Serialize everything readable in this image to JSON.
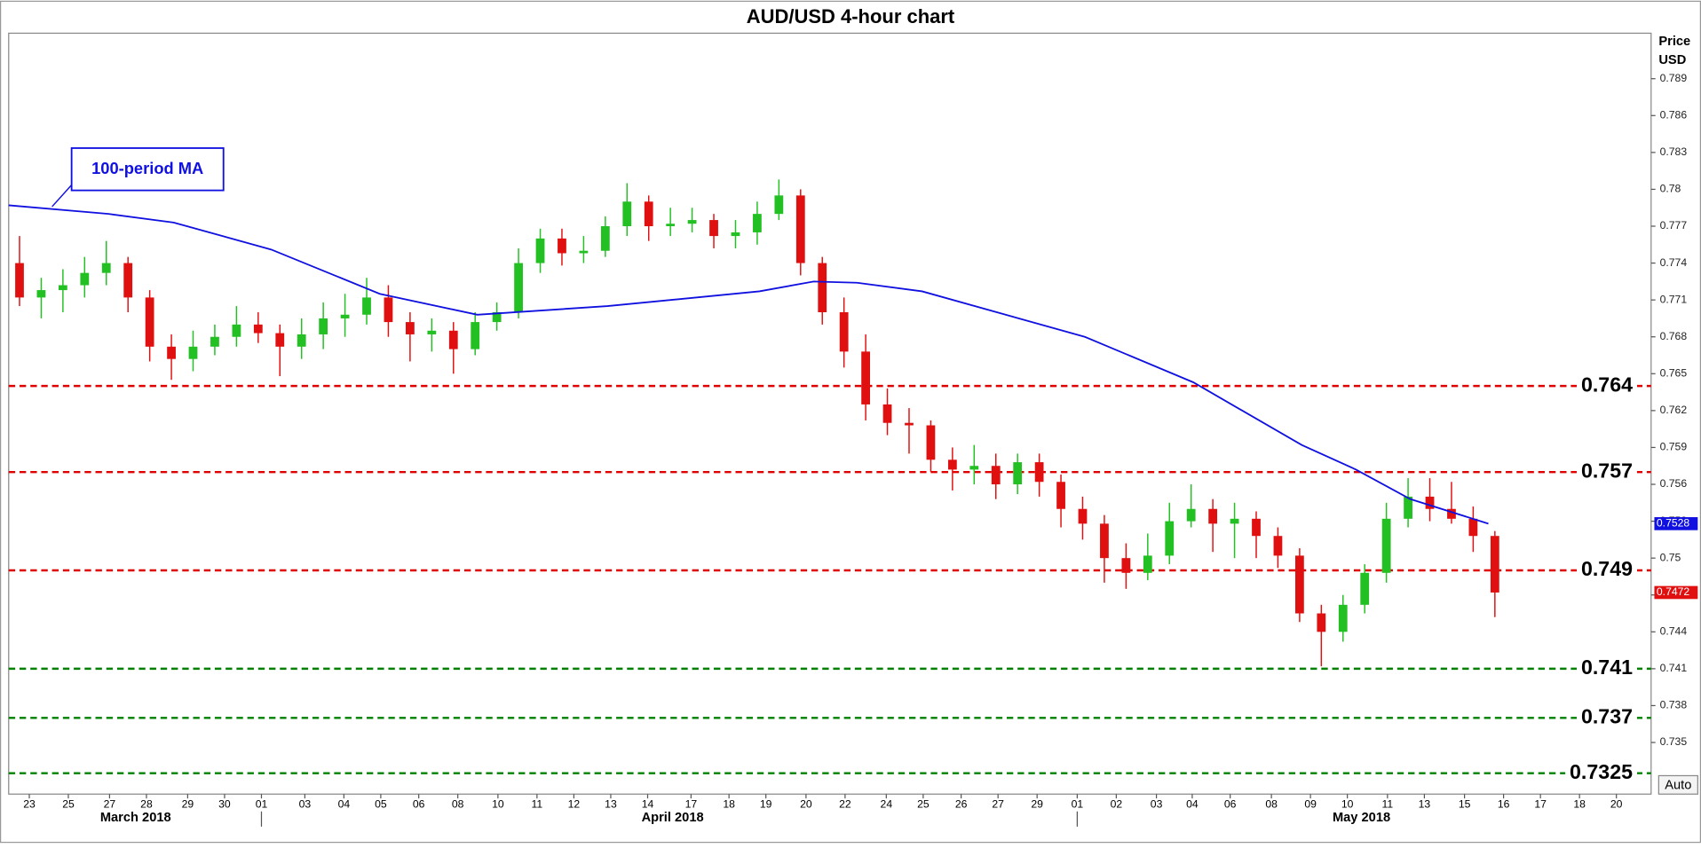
{
  "chart_data": {
    "type": "candlestick",
    "title": "AUD/USD 4-hour chart",
    "y_axis_label": [
      "Price",
      "USD"
    ],
    "up_color": "#22c022",
    "down_color": "#e01010",
    "open": [
      0.774,
      0.7712,
      0.7718,
      0.7722,
      0.7732,
      0.774,
      0.7712,
      0.7672,
      0.7662,
      0.7672,
      0.768,
      0.769,
      0.7683,
      0.7672,
      0.7682,
      0.7695,
      0.7698,
      0.7712,
      0.7692,
      0.7682,
      0.7685,
      0.767,
      0.7692,
      0.77,
      0.774,
      0.776,
      0.7748,
      0.775,
      0.777,
      0.779,
      0.777,
      0.7772,
      0.7775,
      0.7762,
      0.7765,
      0.778,
      0.7795,
      0.774,
      0.77,
      0.7668,
      0.7625,
      0.761,
      0.7608,
      0.758,
      0.7572,
      0.7575,
      0.756,
      0.7578,
      0.7562,
      0.754,
      0.7528,
      0.75,
      0.7488,
      0.7502,
      0.753,
      0.754,
      0.7528,
      0.7532,
      0.7518,
      0.7502,
      0.7455,
      0.744,
      0.7462,
      0.7488,
      0.7532,
      0.755,
      0.754,
      0.7532,
      0.7518
    ],
    "high": [
      0.7762,
      0.7728,
      0.7735,
      0.7745,
      0.7758,
      0.7745,
      0.7718,
      0.7682,
      0.7685,
      0.769,
      0.7705,
      0.77,
      0.769,
      0.7695,
      0.7708,
      0.7715,
      0.7728,
      0.7722,
      0.77,
      0.7695,
      0.7692,
      0.77,
      0.7708,
      0.7752,
      0.7768,
      0.7768,
      0.7762,
      0.7778,
      0.7805,
      0.7795,
      0.7785,
      0.7785,
      0.778,
      0.7775,
      0.779,
      0.7808,
      0.78,
      0.7745,
      0.7712,
      0.7682,
      0.7638,
      0.7622,
      0.7612,
      0.759,
      0.7592,
      0.7585,
      0.7585,
      0.7585,
      0.7568,
      0.755,
      0.7535,
      0.7512,
      0.752,
      0.7545,
      0.756,
      0.7548,
      0.7545,
      0.7538,
      0.7525,
      0.7508,
      0.7462,
      0.747,
      0.7495,
      0.7545,
      0.7565,
      0.7565,
      0.7562,
      0.7542,
      0.7522
    ],
    "low": [
      0.7705,
      0.7695,
      0.77,
      0.7712,
      0.7722,
      0.77,
      0.766,
      0.7645,
      0.7652,
      0.7665,
      0.7672,
      0.7675,
      0.7648,
      0.7662,
      0.767,
      0.768,
      0.769,
      0.768,
      0.766,
      0.7668,
      0.765,
      0.7665,
      0.7685,
      0.7695,
      0.7732,
      0.7738,
      0.774,
      0.7745,
      0.7762,
      0.7758,
      0.7762,
      0.7765,
      0.7752,
      0.7752,
      0.7755,
      0.7775,
      0.773,
      0.769,
      0.7655,
      0.7612,
      0.76,
      0.7585,
      0.757,
      0.7555,
      0.756,
      0.7548,
      0.7552,
      0.755,
      0.7525,
      0.7515,
      0.748,
      0.7475,
      0.7482,
      0.7495,
      0.7525,
      0.7505,
      0.75,
      0.75,
      0.7492,
      0.7448,
      0.7412,
      0.7432,
      0.7455,
      0.748,
      0.7525,
      0.753,
      0.7528,
      0.7505,
      0.7452
    ],
    "close": [
      0.7712,
      0.7718,
      0.7722,
      0.7732,
      0.774,
      0.7712,
      0.7672,
      0.7662,
      0.7672,
      0.768,
      0.769,
      0.7683,
      0.7672,
      0.7682,
      0.7695,
      0.7698,
      0.7712,
      0.7692,
      0.7682,
      0.7685,
      0.767,
      0.7692,
      0.77,
      0.774,
      0.776,
      0.7748,
      0.775,
      0.777,
      0.779,
      0.777,
      0.7772,
      0.7775,
      0.7762,
      0.7765,
      0.778,
      0.7795,
      0.774,
      0.77,
      0.7668,
      0.7625,
      0.761,
      0.7608,
      0.758,
      0.7572,
      0.7575,
      0.756,
      0.7578,
      0.7562,
      0.754,
      0.7528,
      0.75,
      0.7488,
      0.7502,
      0.753,
      0.754,
      0.7528,
      0.7532,
      0.7518,
      0.7502,
      0.7455,
      0.744,
      0.7462,
      0.7488,
      0.7532,
      0.755,
      0.754,
      0.7532,
      0.7518,
      0.7472
    ],
    "ma": {
      "name": "100-period MA",
      "color": "#1010e0",
      "x": [
        0,
        4.6,
        7.6,
        12.1,
        17.1,
        21.6,
        27.6,
        34.6,
        37.1,
        39.1,
        42.1,
        49.6,
        54.6,
        59.6,
        62.1,
        64.6,
        68.2
      ],
      "values": [
        0.7787,
        0.778,
        0.7773,
        0.7751,
        0.7715,
        0.7698,
        0.7705,
        0.7717,
        0.7725,
        0.7724,
        0.7717,
        0.768,
        0.7643,
        0.7592,
        0.7572,
        0.7548,
        0.7528
      ]
    },
    "levels": [
      {
        "value": 0.764,
        "color": "#e00000"
      },
      {
        "value": 0.757,
        "color": "#e00000"
      },
      {
        "value": 0.749,
        "color": "#e00000"
      },
      {
        "value": 0.741,
        "color": "#008000"
      },
      {
        "value": 0.737,
        "color": "#008000"
      },
      {
        "value": 0.7325,
        "color": "#008000"
      }
    ],
    "ylim": [
      0.7308,
      0.7927
    ],
    "yticks": [
      0.789,
      0.786,
      0.783,
      0.78,
      0.777,
      0.774,
      0.771,
      0.768,
      0.765,
      0.762,
      0.759,
      0.756,
      0.753,
      0.75,
      0.747,
      0.744,
      0.741,
      0.738,
      0.735
    ],
    "xlim": [
      0,
      75.7
    ],
    "xticks": [
      {
        "value": 0.95,
        "label": "23"
      },
      {
        "value": 2.75,
        "label": "25"
      },
      {
        "value": 4.65,
        "label": "27"
      },
      {
        "value": 6.35,
        "label": "28"
      },
      {
        "value": 8.25,
        "label": "29"
      },
      {
        "value": 9.95,
        "label": "30"
      },
      {
        "value": 11.65,
        "label": "01"
      },
      {
        "value": 13.65,
        "label": "03"
      },
      {
        "value": 15.45,
        "label": "04"
      },
      {
        "value": 17.15,
        "label": "05"
      },
      {
        "value": 18.9,
        "label": "06"
      },
      {
        "value": 20.7,
        "label": "08"
      },
      {
        "value": 22.55,
        "label": "10"
      },
      {
        "value": 24.35,
        "label": "11"
      },
      {
        "value": 26.05,
        "label": "12"
      },
      {
        "value": 27.75,
        "label": "13"
      },
      {
        "value": 29.45,
        "label": "14"
      },
      {
        "value": 31.45,
        "label": "17"
      },
      {
        "value": 33.2,
        "label": "18"
      },
      {
        "value": 34.9,
        "label": "19"
      },
      {
        "value": 36.75,
        "label": "20"
      },
      {
        "value": 38.55,
        "label": "22"
      },
      {
        "value": 40.45,
        "label": "24"
      },
      {
        "value": 42.15,
        "label": "25"
      },
      {
        "value": 43.9,
        "label": "26"
      },
      {
        "value": 45.6,
        "label": "27"
      },
      {
        "value": 47.4,
        "label": "29"
      },
      {
        "value": 49.25,
        "label": "01"
      },
      {
        "value": 51.05,
        "label": "02"
      },
      {
        "value": 52.9,
        "label": "03"
      },
      {
        "value": 54.55,
        "label": "04"
      },
      {
        "value": 56.3,
        "label": "06"
      },
      {
        "value": 58.2,
        "label": "08"
      },
      {
        "value": 60,
        "label": "09"
      },
      {
        "value": 61.7,
        "label": "10"
      },
      {
        "value": 63.55,
        "label": "11"
      },
      {
        "value": 65.25,
        "label": "13"
      },
      {
        "value": 67.1,
        "label": "15"
      },
      {
        "value": 68.9,
        "label": "16"
      },
      {
        "value": 70.6,
        "label": "17"
      },
      {
        "value": 72.4,
        "label": "18"
      },
      {
        "value": 74.1,
        "label": "20"
      }
    ],
    "months": [
      {
        "value": 5.85,
        "label": "March 2018"
      },
      {
        "value": 30.6,
        "label": "April 2018"
      },
      {
        "value": 62.35,
        "label": "May 2018"
      }
    ],
    "month_ticks": [
      11.65,
      49.25
    ],
    "grid": false,
    "button": "Auto"
  }
}
